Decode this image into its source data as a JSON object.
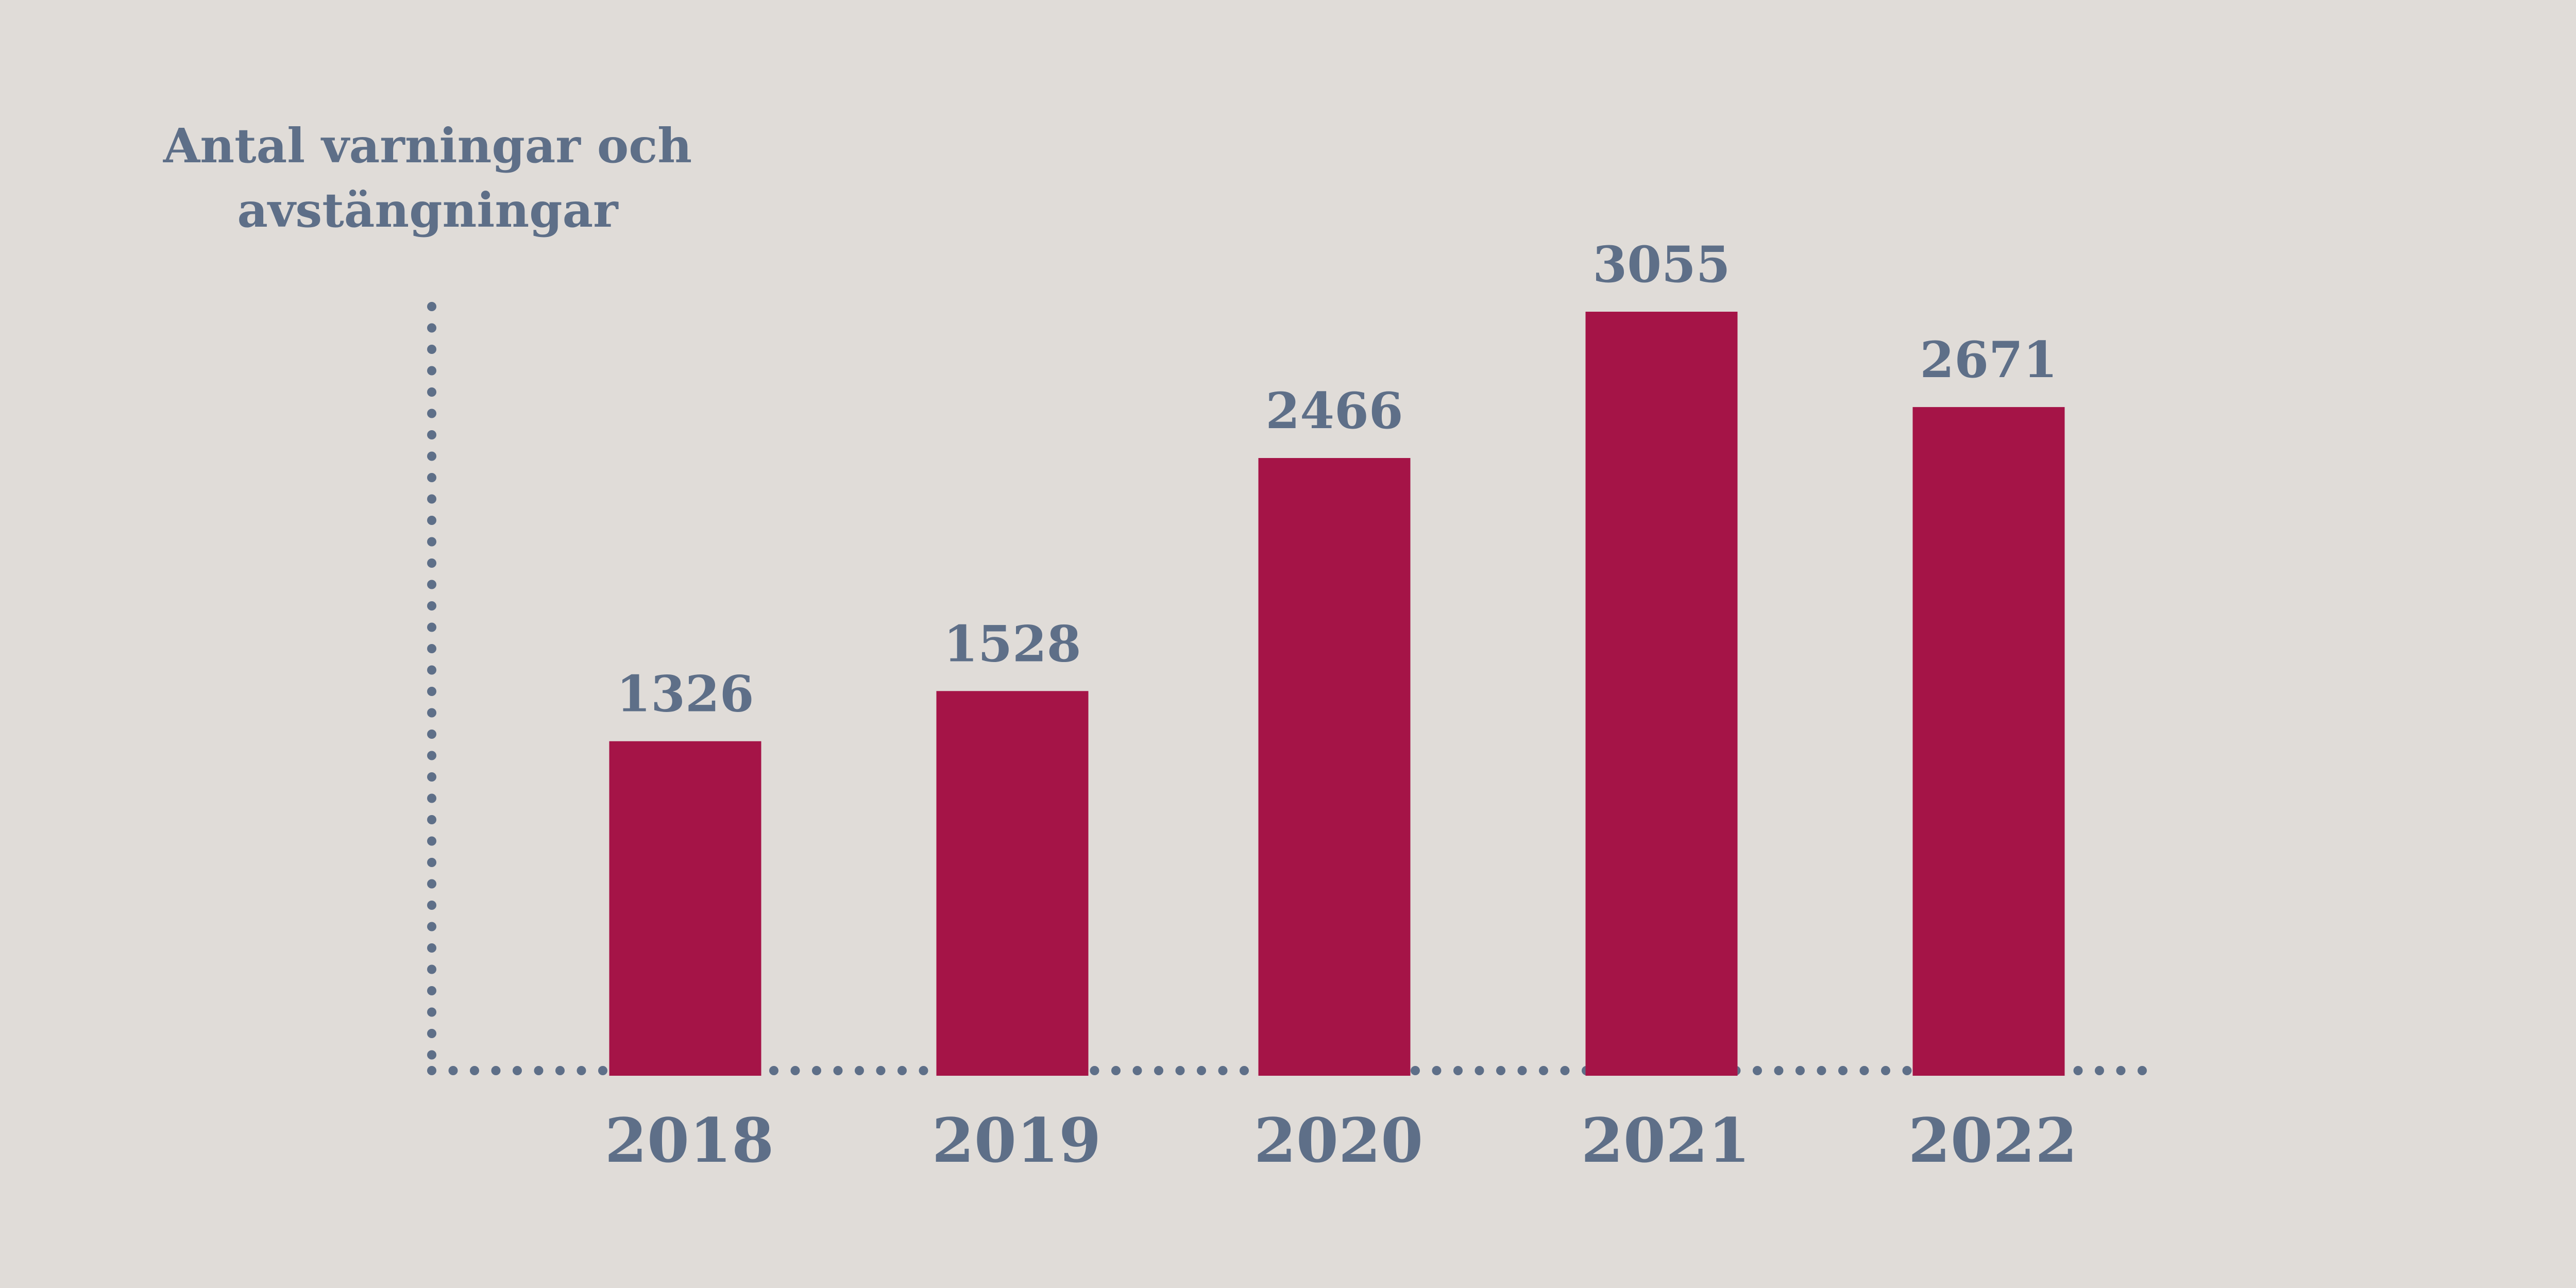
{
  "colors": {
    "background": "#e0dcd8",
    "bar": "#a51447",
    "text": "#5e6f88",
    "axis": "#5e6f88"
  },
  "chart_data": {
    "type": "bar",
    "ylabel_lines": [
      "Antal varningar och",
      "avstängningar"
    ],
    "categories": [
      "2018",
      "2019",
      "2020",
      "2021",
      "2022"
    ],
    "values": [
      1326,
      1528,
      2466,
      3055,
      2671
    ],
    "data_labels": [
      "1326",
      "1528",
      "2466",
      "3055",
      "2671"
    ],
    "ylim": [
      0,
      3055
    ],
    "grid": false,
    "legend": "none",
    "axis_style": "dotted"
  }
}
